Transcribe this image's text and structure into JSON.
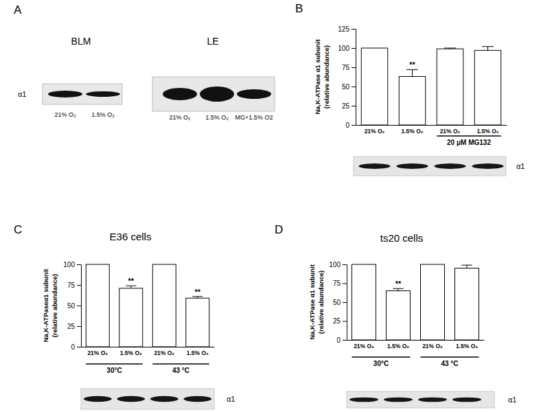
{
  "chart_data": [
    {
      "type": "bar",
      "panel": "B",
      "ylabel": [
        "Na,K-ATPase α1 subunit",
        "(relative abundance)"
      ],
      "categories": [
        "21% O₂",
        "1.5% O₂",
        "21% O₂",
        "1.5% O₂"
      ],
      "values": [
        100,
        63,
        99,
        97
      ],
      "errors": [
        null,
        9,
        1,
        5
      ],
      "annotations": [
        null,
        "**",
        null,
        null
      ],
      "groups": [
        {
          "label": "20 μM MG132",
          "categories": [
            2,
            3
          ]
        }
      ],
      "blot_label": "α1",
      "color": "#ffffff",
      "ylim": [
        0,
        125
      ],
      "yticks": [
        0,
        25,
        50,
        75,
        100,
        125
      ],
      "grid": false
    },
    {
      "type": "bar",
      "panel": "C",
      "title": "E36 cells",
      "ylabel": [
        "Na,K-ATPaseα1 subunit",
        "(relative abundance)"
      ],
      "categories": [
        "21% O₂",
        "1.5% O₂",
        "21% O₂",
        "1.5% O₂"
      ],
      "values": [
        100,
        71,
        100,
        59
      ],
      "errors": [
        null,
        3,
        null,
        2
      ],
      "annotations": [
        null,
        "**",
        null,
        "**"
      ],
      "groups": [
        {
          "label": "30°C",
          "categories": [
            0,
            1
          ]
        },
        {
          "label": "43 °C",
          "categories": [
            2,
            3
          ]
        }
      ],
      "blot_label": "α1",
      "color": "#ffffff",
      "ylim": [
        0,
        100
      ],
      "yticks": [
        0,
        25,
        50,
        75,
        100
      ],
      "grid": false
    },
    {
      "type": "bar",
      "panel": "D",
      "title": "ts20 cells",
      "ylabel": [
        "Na,K-ATPase α1 subunit",
        "(relative abundance)"
      ],
      "categories": [
        "21% O₂",
        "1.5% O₂",
        "21% O₂",
        "1.5% O₂"
      ],
      "values": [
        100,
        65,
        100,
        95
      ],
      "errors": [
        null,
        3,
        null,
        4
      ],
      "annotations": [
        null,
        "**",
        null,
        null
      ],
      "groups": [
        {
          "label": "30°C",
          "categories": [
            0,
            1
          ]
        },
        {
          "label": "43 °C",
          "categories": [
            2,
            3
          ]
        }
      ],
      "blot_label": "α1",
      "color": "#ffffff",
      "ylim": [
        0,
        100
      ],
      "yticks": [
        0,
        25,
        50,
        75,
        100
      ],
      "grid": false
    }
  ],
  "figure_a": {
    "panel": "A",
    "blot_label": "α1",
    "blots": [
      {
        "title": "BLM",
        "lanes": [
          "21% O₂",
          "1.5% O₂"
        ]
      },
      {
        "title": "LE",
        "lanes": [
          "21% O₂",
          "1.5% O₂",
          "MG+1.5% O2"
        ]
      }
    ]
  }
}
